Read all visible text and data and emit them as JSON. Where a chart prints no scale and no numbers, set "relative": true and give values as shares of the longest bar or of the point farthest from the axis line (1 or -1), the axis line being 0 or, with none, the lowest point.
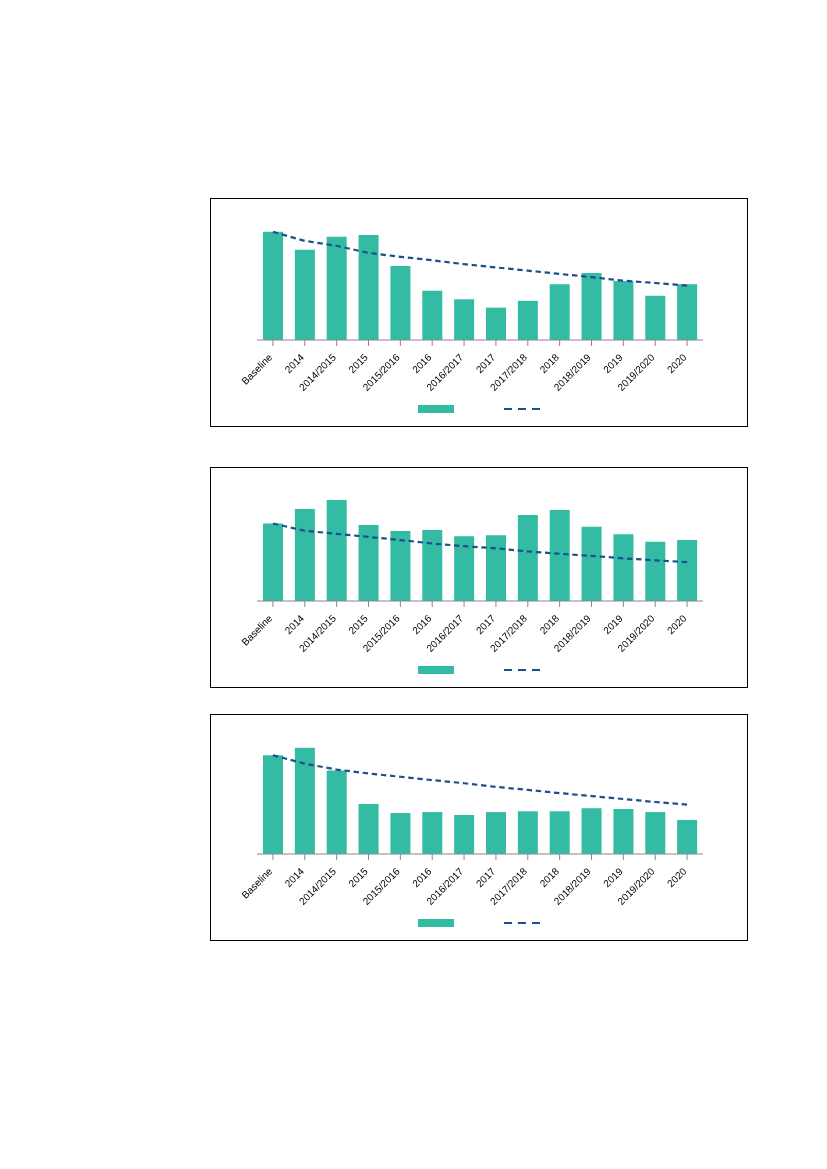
{
  "chart_data": [
    {
      "type": "bar",
      "relative": true,
      "categories": [
        "Baseline",
        "2014",
        "2014/2015",
        "2015",
        "2015/2016",
        "2016",
        "2016/2017",
        "2017",
        "2017/2018",
        "2018",
        "2018/2019",
        "2019",
        "2019/2020",
        "2020"
      ],
      "series": [
        {
          "color": "#33bba3",
          "values": [
            1,
            0.835,
            0.955,
            0.97,
            0.683,
            0.455,
            0.377,
            0.299,
            0.362,
            0.515,
            0.62,
            0.545,
            0.41,
            0.515
          ]
        },
        {
          "type": "line",
          "color": "#1f4e8c",
          "line_style": "dashed",
          "marker": "none",
          "values": [
            1,
            0.916,
            0.871,
            0.805,
            0.769,
            0.737,
            0.701,
            0.671,
            0.641,
            0.611,
            0.581,
            0.548,
            0.527,
            0.503
          ]
        }
      ]
    },
    {
      "type": "bar",
      "relative": true,
      "categories": [
        "Baseline",
        "2014",
        "2014/2015",
        "2015",
        "2015/2016",
        "2016",
        "2016/2017",
        "2017",
        "2017/2018",
        "2018",
        "2018/2019",
        "2019",
        "2019/2020",
        "2020"
      ],
      "series": [
        {
          "color": "#33bba3",
          "values": [
            0.768,
            0.911,
            1,
            0.754,
            0.693,
            0.703,
            0.642,
            0.652,
            0.853,
            0.901,
            0.737,
            0.662,
            0.587,
            0.604
          ]
        },
        {
          "type": "line",
          "color": "#1f4e8c",
          "line_style": "dashed",
          "marker": "none",
          "values": [
            0.768,
            0.696,
            0.666,
            0.635,
            0.604,
            0.57,
            0.543,
            0.522,
            0.491,
            0.468,
            0.447,
            0.423,
            0.403,
            0.386
          ]
        }
      ]
    },
    {
      "type": "bar",
      "relative": true,
      "categories": [
        "Baseline",
        "2014",
        "2014/2015",
        "2015",
        "2015/2016",
        "2016",
        "2016/2017",
        "2017",
        "2017/2018",
        "2018",
        "2018/2019",
        "2019",
        "2019/2020",
        "2020"
      ],
      "series": [
        {
          "color": "#33bba3",
          "values": [
            0.929,
            1,
            0.785,
            0.471,
            0.385,
            0.394,
            0.366,
            0.394,
            0.403,
            0.403,
            0.431,
            0.422,
            0.394,
            0.32
          ]
        },
        {
          "type": "line",
          "color": "#1f4e8c",
          "line_style": "dashed",
          "marker": "none",
          "values": [
            0.929,
            0.849,
            0.794,
            0.757,
            0.726,
            0.695,
            0.665,
            0.631,
            0.603,
            0.572,
            0.545,
            0.517,
            0.489,
            0.465
          ]
        }
      ]
    }
  ]
}
